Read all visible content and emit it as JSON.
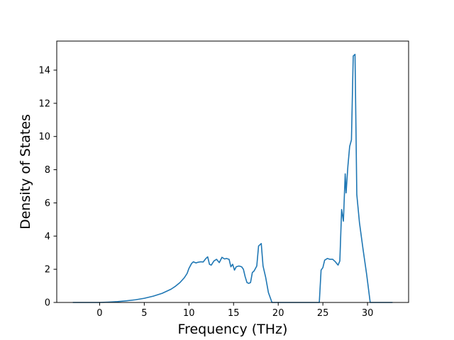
{
  "chart_data": {
    "type": "line",
    "title": "",
    "xlabel": "Frequency (THz)",
    "ylabel": "Density of States",
    "xlim": [
      -4.8,
      34.6
    ],
    "ylim": [
      0,
      15.75
    ],
    "xticks": [
      0,
      5,
      10,
      15,
      20,
      25,
      30
    ],
    "yticks": [
      0,
      2,
      4,
      6,
      8,
      10,
      12,
      14
    ],
    "grid": false,
    "legend": "none",
    "colors": {
      "line": "#1f77b4",
      "axes": "#000000",
      "background": "#ffffff"
    },
    "series": [
      {
        "x": [
          -3.0,
          -1.0,
          0.0,
          1.0,
          2.0,
          3.0,
          4.0,
          5.0,
          6.0,
          7.0,
          8.0,
          8.5,
          9.0,
          9.5,
          9.8,
          10.0,
          10.3,
          10.5,
          10.8,
          11.0,
          11.3,
          11.6,
          11.9,
          12.1,
          12.3,
          12.5,
          12.8,
          13.1,
          13.4,
          13.7,
          14.0,
          14.2,
          14.5,
          14.7,
          14.9,
          15.1,
          15.3,
          15.6,
          15.9,
          16.1,
          16.3,
          16.5,
          16.7,
          16.9,
          17.1,
          17.3,
          17.6,
          17.8,
          18.1,
          18.3,
          18.6,
          18.9,
          19.1,
          19.3,
          20.0,
          23.0,
          24.6,
          24.8,
          25.0,
          25.2,
          25.5,
          25.8,
          26.1,
          26.4,
          26.7,
          26.9,
          27.1,
          27.3,
          27.5,
          27.6,
          27.8,
          28.0,
          28.2,
          28.4,
          28.6,
          28.8,
          29.1,
          29.5,
          29.9,
          30.3,
          31.5,
          32.8
        ],
        "y": [
          0.0,
          0.0,
          0.0,
          0.02,
          0.05,
          0.1,
          0.16,
          0.25,
          0.38,
          0.55,
          0.8,
          0.98,
          1.2,
          1.5,
          1.75,
          2.05,
          2.35,
          2.45,
          2.38,
          2.42,
          2.45,
          2.44,
          2.65,
          2.75,
          2.3,
          2.25,
          2.5,
          2.6,
          2.4,
          2.72,
          2.62,
          2.65,
          2.6,
          2.15,
          2.3,
          1.95,
          2.15,
          2.2,
          2.15,
          2.0,
          1.55,
          1.2,
          1.15,
          1.2,
          1.8,
          1.9,
          2.2,
          3.4,
          3.55,
          2.2,
          1.5,
          0.6,
          0.3,
          0.0,
          0.0,
          0.0,
          0.0,
          1.95,
          2.1,
          2.55,
          2.65,
          2.6,
          2.6,
          2.45,
          2.25,
          2.5,
          5.6,
          4.9,
          7.75,
          6.6,
          8.2,
          9.4,
          9.8,
          14.85,
          14.95,
          6.5,
          4.8,
          3.2,
          1.7,
          0.0,
          0.0,
          0.0
        ]
      }
    ]
  }
}
